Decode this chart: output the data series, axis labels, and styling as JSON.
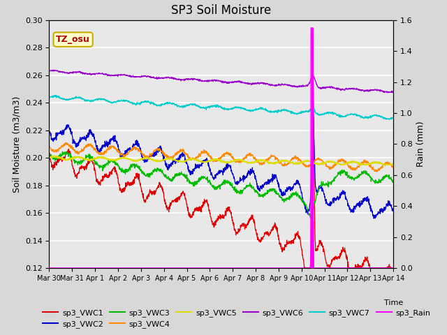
{
  "title": "SP3 Soil Moisture",
  "ylabel_left": "Soil Moisture (m3/m3)",
  "ylabel_right": "Rain (mm)",
  "xlabel": "Time",
  "ylim_left": [
    0.12,
    0.3
  ],
  "ylim_right": [
    0.0,
    1.6
  ],
  "fig_bg": "#d8d8d8",
  "plot_bg": "#e8e8e8",
  "tz_label": "TZ_osu",
  "tz_bg": "#ffffcc",
  "tz_border": "#ccaa00",
  "tz_text_color": "#aa0000",
  "series_colors": {
    "sp3_VWC1": "#dd0000",
    "sp3_VWC2": "#0000cc",
    "sp3_VWC3": "#00bb00",
    "sp3_VWC4": "#ff8800",
    "sp3_VWC5": "#dddd00",
    "sp3_VWC6": "#9900cc",
    "sp3_VWC7": "#00cccc",
    "sp3_Rain": "#ff00ff"
  },
  "x_tick_labels": [
    "Mar 30",
    "Mar 31",
    "Apr 1",
    "Apr 2",
    "Apr 3",
    "Apr 4",
    "Apr 5",
    "Apr 6",
    "Apr 7",
    "Apr 8",
    "Apr 9",
    "Apr 10",
    "Apr 11",
    "Apr 12",
    "Apr 13",
    "Apr 14"
  ],
  "yticks_left": [
    0.12,
    0.14,
    0.16,
    0.18,
    0.2,
    0.22,
    0.24,
    0.26,
    0.28,
    0.3
  ],
  "yticks_right": [
    0.0,
    0.2,
    0.4,
    0.6,
    0.8,
    1.0,
    1.2,
    1.4,
    1.6
  ]
}
